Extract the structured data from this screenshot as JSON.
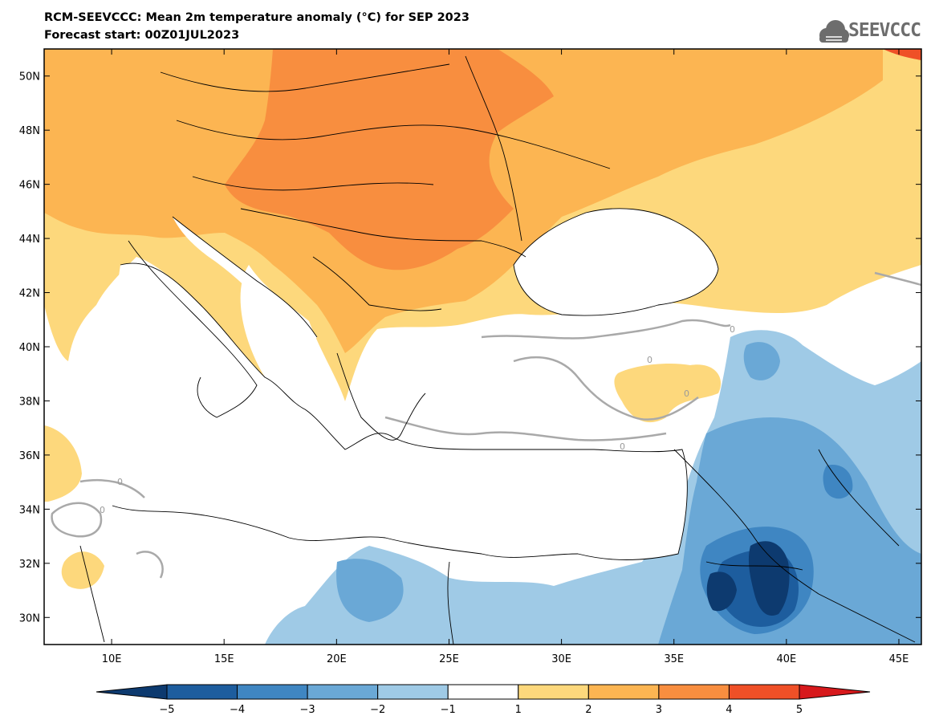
{
  "title": {
    "line1": "RCM-SEEVCCC: Mean 2m temperature anomaly (°C) for SEP 2023",
    "line2": "Forecast start: 00Z01JUL2023"
  },
  "logo": {
    "text": "SEEVCCC",
    "icon": "cloud-icon",
    "color": "#6d6d6d"
  },
  "map": {
    "lon_range": [
      7,
      46
    ],
    "lat_range": [
      29,
      51
    ],
    "lon_ticks": [
      {
        "value": 10,
        "label": "10E"
      },
      {
        "value": 15,
        "label": "15E"
      },
      {
        "value": 20,
        "label": "20E"
      },
      {
        "value": 25,
        "label": "25E"
      },
      {
        "value": 30,
        "label": "30E"
      },
      {
        "value": 35,
        "label": "35E"
      },
      {
        "value": 40,
        "label": "40E"
      },
      {
        "value": 45,
        "label": "45E"
      }
    ],
    "lat_ticks": [
      {
        "value": 30,
        "label": "30N"
      },
      {
        "value": 32,
        "label": "32N"
      },
      {
        "value": 34,
        "label": "34N"
      },
      {
        "value": 36,
        "label": "36N"
      },
      {
        "value": 38,
        "label": "38N"
      },
      {
        "value": 40,
        "label": "40N"
      },
      {
        "value": 42,
        "label": "42N"
      },
      {
        "value": 44,
        "label": "44N"
      },
      {
        "value": 46,
        "label": "46N"
      },
      {
        "value": 48,
        "label": "48N"
      },
      {
        "value": 50,
        "label": "50N"
      }
    ],
    "contour_labels": [
      "0"
    ]
  },
  "colorbar": {
    "ticks": [
      "−5",
      "−4",
      "−3",
      "−2",
      "−1",
      "1",
      "2",
      "3",
      "4",
      "5"
    ],
    "colors": {
      "below_min": "#0d3a6f",
      "b_-5_-4": "#1d5d9e",
      "b_-4_-3": "#3f86c2",
      "b_-3_-2": "#6aa8d6",
      "b_-2_-1": "#9fcae6",
      "b_-1_1": "#ffffff",
      "b_1_2": "#fdd87c",
      "b_2_3": "#fcb552",
      "b_3_4": "#f88e3f",
      "b_4_5": "#ef5027",
      "above_max": "#d7191c"
    }
  }
}
